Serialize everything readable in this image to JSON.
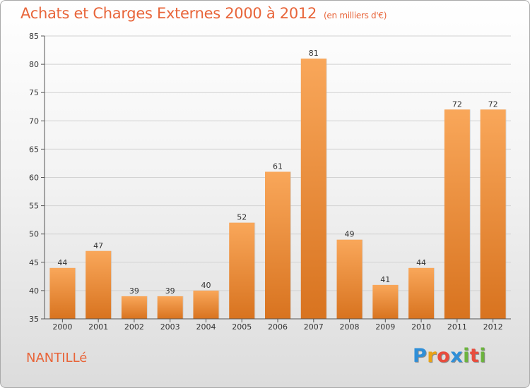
{
  "header": {
    "title": "Achats et Charges Externes 2000 à 2012",
    "subtitle": "(en milliers d'€)"
  },
  "footer": {
    "commune": "NANTILLé",
    "logo_letters": [
      "P",
      "r",
      "o",
      "x",
      "i",
      "t",
      "i"
    ],
    "logo_colors": [
      "#2f8fd8",
      "#e9a317",
      "#e84c3d",
      "#2f8fd8",
      "#6cb33e",
      "#e84c3d",
      "#6cb33e"
    ]
  },
  "chart_data": {
    "type": "bar",
    "title": "Achats et Charges Externes 2000 à 2012",
    "subtitle": "(en milliers d'€)",
    "categories": [
      "2000",
      "2001",
      "2002",
      "2003",
      "2004",
      "2005",
      "2006",
      "2007",
      "2008",
      "2009",
      "2010",
      "2011",
      "2012"
    ],
    "values": [
      44,
      47,
      39,
      39,
      40,
      52,
      61,
      81,
      49,
      41,
      44,
      72,
      72
    ],
    "ylim": [
      35,
      85
    ],
    "yticks": [
      35,
      40,
      45,
      50,
      55,
      60,
      65,
      70,
      75,
      80,
      85
    ],
    "grid": true,
    "bar_color_top": "#f9a75a",
    "bar_color_bottom": "#d8731f",
    "legend": "none"
  }
}
